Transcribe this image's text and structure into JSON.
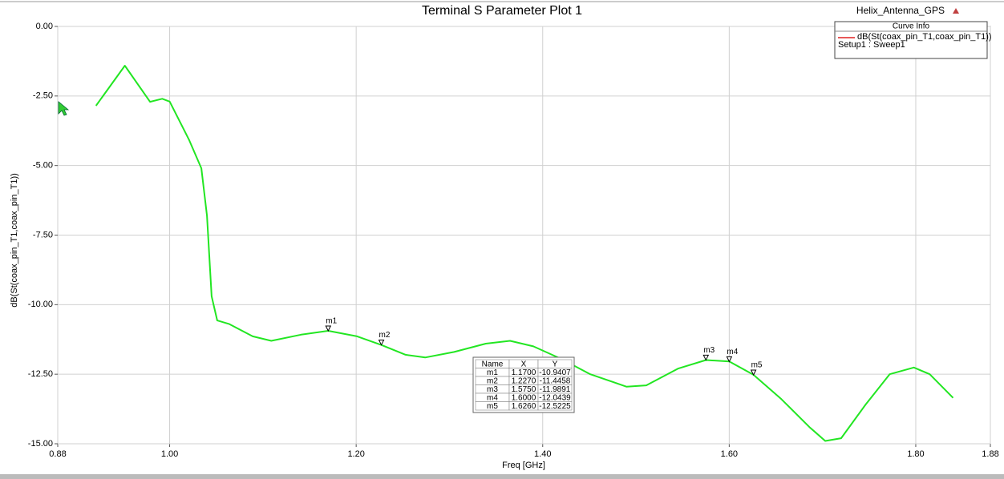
{
  "chart_data": {
    "type": "line",
    "title": "Terminal S Parameter Plot 1",
    "project": "Helix_Antenna_GPS",
    "xlabel": "Freq [GHz]",
    "ylabel": "dB(St(coax_pin_T1,coax_pin_T1))",
    "legend_title": "Curve Info",
    "legend_subtitle": "Setup1 : Sweep1",
    "legend_line_color": "#e02020",
    "x": [
      0.921,
      0.952,
      0.979,
      0.992,
      1.0,
      1.021,
      1.034,
      1.04,
      1.045,
      1.051,
      1.064,
      1.089,
      1.109,
      1.141,
      1.17,
      1.201,
      1.227,
      1.253,
      1.274,
      1.305,
      1.339,
      1.365,
      1.39,
      1.42,
      1.451,
      1.49,
      1.511,
      1.545,
      1.575,
      1.6,
      1.626,
      1.656,
      1.686,
      1.703,
      1.72,
      1.746,
      1.772,
      1.798,
      1.815,
      1.84
    ],
    "series": [
      {
        "name": "dB(St(coax_pin_T1,coax_pin_T1))",
        "color": "#22e622",
        "values": [
          -2.85,
          -1.41,
          -2.71,
          -2.6,
          -2.7,
          -4.09,
          -5.1,
          -6.8,
          -9.7,
          -10.57,
          -10.7,
          -11.14,
          -11.3,
          -11.08,
          -10.94,
          -11.14,
          -11.45,
          -11.8,
          -11.9,
          -11.7,
          -11.4,
          -11.3,
          -11.5,
          -11.95,
          -12.5,
          -12.95,
          -12.9,
          -12.3,
          -11.99,
          -12.04,
          -12.52,
          -13.4,
          -14.4,
          -14.9,
          -14.8,
          -13.6,
          -12.5,
          -12.26,
          -12.5,
          -13.35
        ]
      }
    ],
    "xlim": [
      0.88,
      1.88
    ],
    "xticks": [
      0.88,
      {
        "value": 1,
        "label": "1.00"
      },
      {
        "value": 1.2,
        "label": "1.20"
      },
      {
        "value": 1.4,
        "label": "1.40"
      },
      {
        "value": 1.6,
        "label": "1.60"
      },
      {
        "value": 1.8,
        "label": "1.80"
      },
      1.88
    ],
    "ylim": [
      -15,
      0
    ],
    "yticks": [
      {
        "value": 0,
        "label": "0.00"
      },
      {
        "value": -2.5,
        "label": "-2.50"
      },
      {
        "value": -5,
        "label": "-5.00"
      },
      {
        "value": -7.5,
        "label": "-7.50"
      },
      {
        "value": -10,
        "label": "-10.00"
      },
      {
        "value": -12.5,
        "label": "-12.50"
      },
      {
        "value": -15,
        "label": "-15.00"
      }
    ],
    "grid": true,
    "marker_table": {
      "columns": [
        "Name",
        "X",
        "Y"
      ],
      "rows": [
        [
          "m1",
          "1.1700",
          "-10.9407"
        ],
        [
          "m2",
          "1.2270",
          "-11.4458"
        ],
        [
          "m3",
          "1.5750",
          "-11.9891"
        ],
        [
          "m4",
          "1.6000",
          "-12.0439"
        ],
        [
          "m5",
          "1.6260",
          "-12.5225"
        ]
      ]
    }
  }
}
